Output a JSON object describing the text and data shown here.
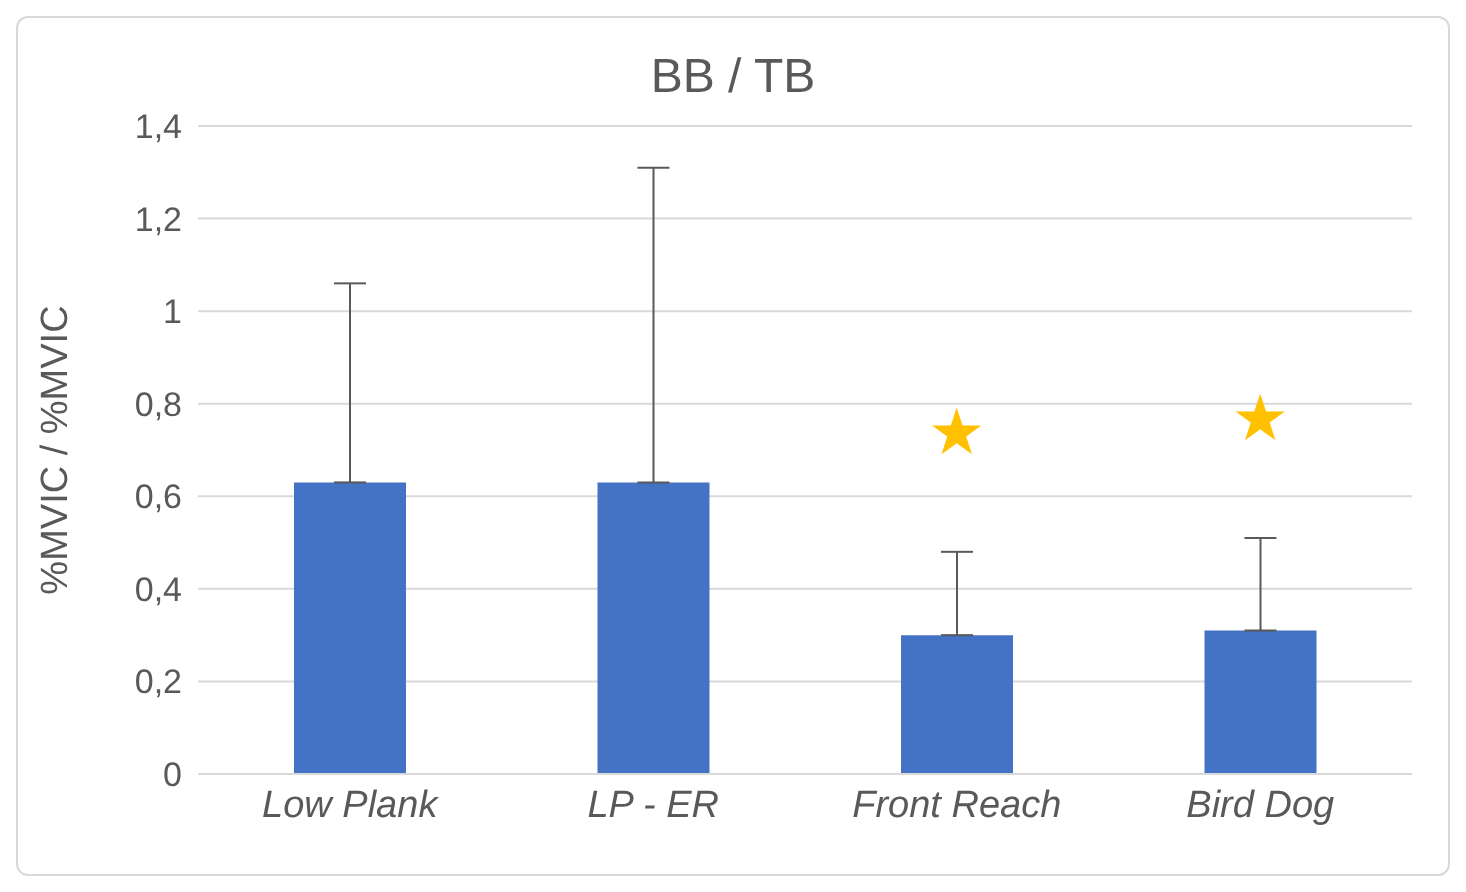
{
  "chart_data": {
    "type": "bar",
    "title": "BB / TB",
    "ylabel": "%MVIC / %MVIC",
    "categories": [
      "Low Plank",
      "LP - ER",
      "Front Reach",
      "Bird Dog"
    ],
    "values": [
      0.63,
      0.63,
      0.3,
      0.31
    ],
    "color": "#4472c4",
    "errors": [
      [
        0.63,
        1.06
      ],
      [
        0.63,
        1.31
      ],
      [
        0.3,
        0.48
      ],
      [
        0.31,
        0.51
      ]
    ],
    "ylim": [
      0,
      1.4
    ],
    "yticks": [
      {
        "value": 0,
        "label": "0"
      },
      {
        "value": 0.2,
        "label": "0,2"
      },
      {
        "value": 0.4,
        "label": "0,4"
      },
      {
        "value": 0.6,
        "label": "0,6"
      },
      {
        "value": 0.8,
        "label": "0,8"
      },
      {
        "value": 1,
        "label": "1"
      },
      {
        "value": 1.2,
        "label": "1,2"
      },
      {
        "value": 1.4,
        "label": "1,4"
      }
    ],
    "grid": "y",
    "annotations": [
      "★",
      "★"
    ]
  }
}
